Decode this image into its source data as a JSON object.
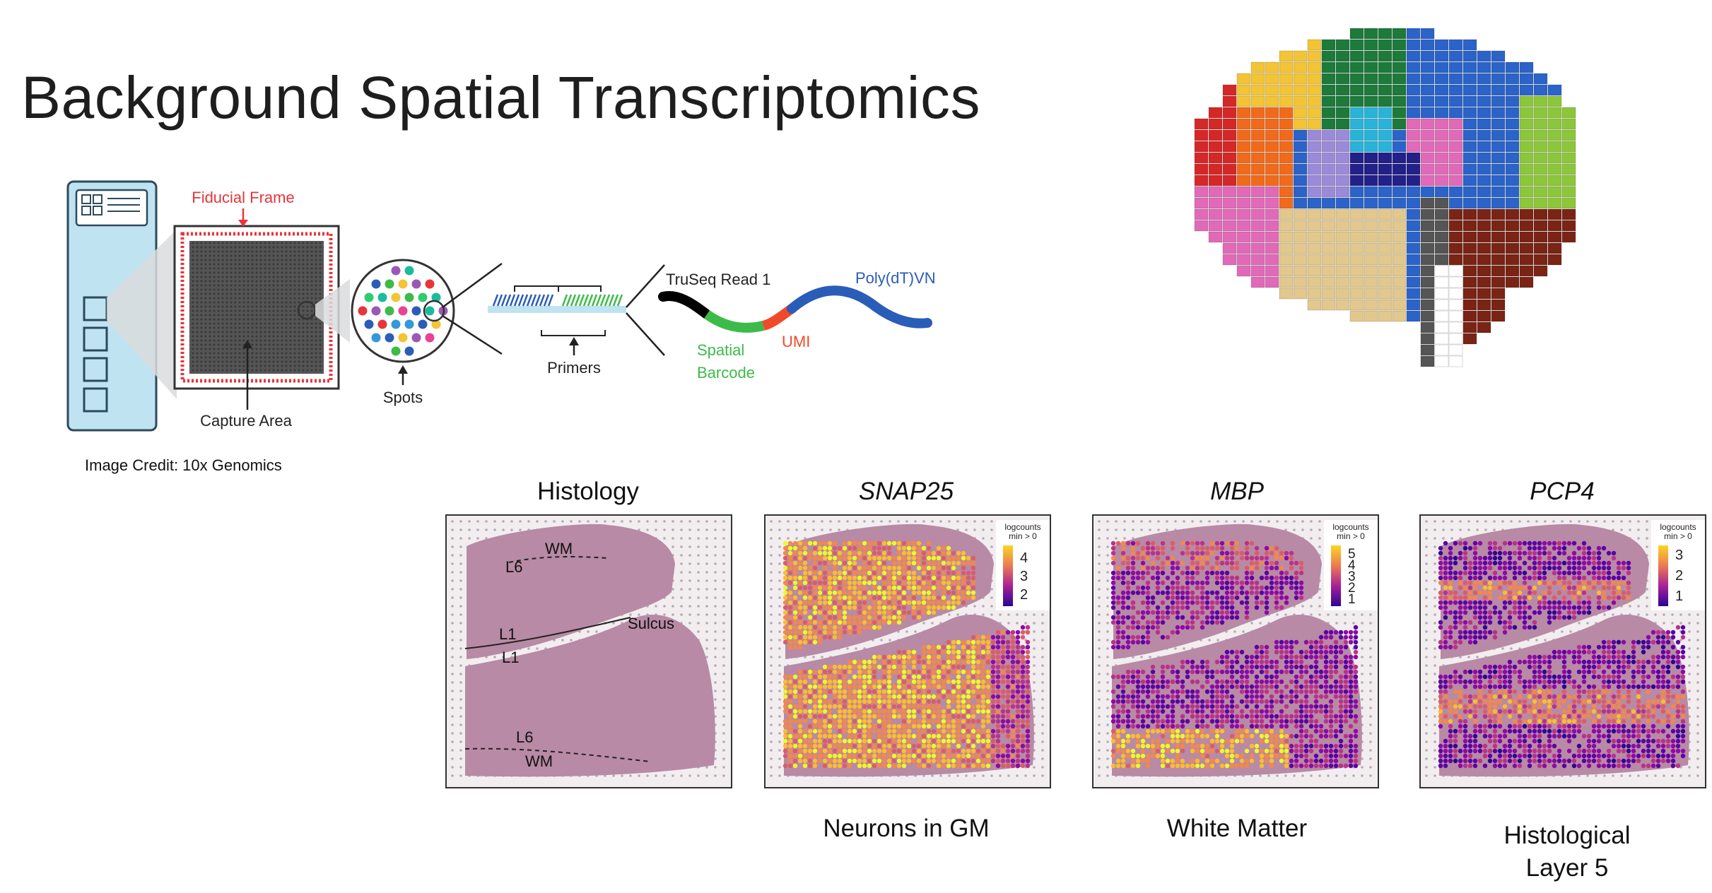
{
  "slide": {
    "title": "Background Spatial Transcriptomics",
    "credit": "Image Credit: 10x Genomics"
  },
  "diagram": {
    "fiducial_label": "Fiducial Frame",
    "capture_label": "Capture Area",
    "spots_label": "Spots",
    "primers_label": "Primers",
    "truseq_label": "TruSeq Read 1",
    "polydt_label": "Poly(dT)VN",
    "spatial_label": "Spatial",
    "barcode_label": "Barcode",
    "umi_label": "UMI",
    "colors": {
      "slide_fill": "#bfe3f0",
      "fiducial": "#e8353b",
      "spatial": "#3dbb4a",
      "umi": "#f04a2a",
      "polydt": "#2a5db8"
    }
  },
  "panels": [
    {
      "title": "Histology",
      "caption": "",
      "annotations": [
        "WM",
        "L6",
        "L1",
        "L1",
        "Sulcus",
        "L6",
        "WM"
      ]
    },
    {
      "title": "SNAP25",
      "caption": "Neurons in GM",
      "legend_title_1": "logcounts",
      "legend_title_2": "min > 0",
      "legend_ticks": [
        "4",
        "3",
        "2"
      ]
    },
    {
      "title": "MBP",
      "caption": "White Matter",
      "legend_title_1": "logcounts",
      "legend_title_2": "min > 0",
      "legend_ticks": [
        "5",
        "4",
        "3",
        "2",
        "1"
      ]
    },
    {
      "title": "PCP4",
      "caption_line1": "Histological",
      "caption_line2": "Layer 5",
      "legend_title_1": "logcounts",
      "legend_title_2": "min > 0",
      "legend_ticks": [
        "3",
        "2",
        "1"
      ]
    }
  ],
  "brain_colors": [
    "#d42828",
    "#f06a1c",
    "#f2c436",
    "#1d7a3a",
    "#2b63c8",
    "#2ab3d8",
    "#9b8ad8",
    "#e06ab8",
    "#8cc63a",
    "#24208a",
    "#555555",
    "#7a2416",
    "#e2c88c",
    "#ffffff"
  ]
}
